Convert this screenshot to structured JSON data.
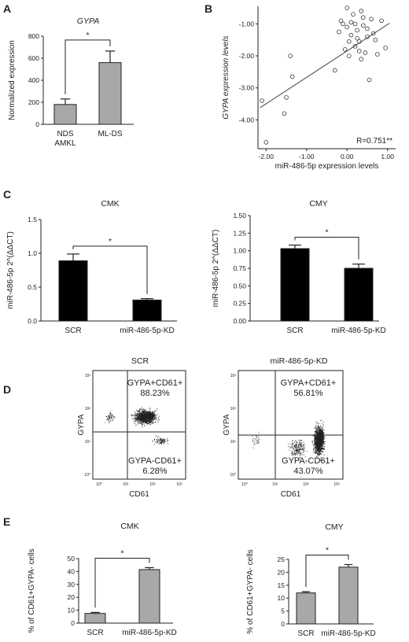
{
  "panels": {
    "A": "A",
    "B": "B",
    "C": "C",
    "D": "D",
    "E": "E"
  },
  "chart_data": [
    {
      "id": "A",
      "type": "bar",
      "title": "GYPA",
      "ylabel": "Normalized expression",
      "categories": [
        [
          "NDS",
          "AMKL"
        ],
        [
          "ML-DS"
        ]
      ],
      "values": [
        180,
        560
      ],
      "errors": [
        50,
        105
      ],
      "ylim": [
        0,
        800
      ],
      "yticks": [
        "0",
        "200",
        "400",
        "600",
        "800"
      ],
      "bar_color": "#a8a8a8",
      "significance": "*"
    },
    {
      "id": "B",
      "type": "scatter",
      "xlabel": "miR-486-5p expression levels",
      "ylabel": "GYPA expression levels",
      "xlim": [
        -2.2,
        1.2
      ],
      "ylim": [
        -4.9,
        -0.45
      ],
      "xticks": [
        -2.0,
        -1.0,
        0.0,
        1.0
      ],
      "xtick_labels": [
        "-2.00",
        "-1.00",
        "0.00",
        "1.00"
      ],
      "yticks": [
        -1.0,
        -2.0,
        -3.0,
        -4.0
      ],
      "ytick_labels": [
        "-1.00",
        "-2.00",
        "-3.00",
        "-4.00"
      ],
      "annotation": "R=0.751**",
      "fit_line": [
        [
          -2.15,
          -3.62
        ],
        [
          1.05,
          -0.98
        ]
      ],
      "points": [
        [
          -2.1,
          -3.4
        ],
        [
          -2.0,
          -4.7
        ],
        [
          -1.4,
          -2.0
        ],
        [
          -1.55,
          -3.8
        ],
        [
          -1.5,
          -3.3
        ],
        [
          -1.35,
          -2.65
        ],
        [
          -0.3,
          -2.45
        ],
        [
          -0.2,
          -1.25
        ],
        [
          -0.15,
          -0.9
        ],
        [
          -0.1,
          -1.0
        ],
        [
          -0.05,
          -1.8
        ],
        [
          0.0,
          -0.5
        ],
        [
          0.0,
          -1.1
        ],
        [
          0.05,
          -2.0
        ],
        [
          0.05,
          -1.55
        ],
        [
          0.1,
          -0.95
        ],
        [
          0.1,
          -1.35
        ],
        [
          0.15,
          -0.7
        ],
        [
          0.2,
          -1.0
        ],
        [
          0.2,
          -1.7
        ],
        [
          0.25,
          -1.2
        ],
        [
          0.3,
          -1.55
        ],
        [
          0.3,
          -1.85
        ],
        [
          0.35,
          -2.1
        ],
        [
          0.35,
          -0.6
        ],
        [
          0.4,
          -1.05
        ],
        [
          0.45,
          -1.9
        ],
        [
          0.5,
          -1.4
        ],
        [
          0.5,
          -1.15
        ],
        [
          0.55,
          -2.75
        ],
        [
          0.6,
          -0.85
        ],
        [
          0.65,
          -1.3
        ],
        [
          0.7,
          -1.5
        ],
        [
          0.75,
          -1.95
        ],
        [
          0.85,
          -0.9
        ],
        [
          0.95,
          -1.75
        ],
        [
          0.4,
          -0.8
        ],
        [
          0.25,
          -1.45
        ]
      ]
    },
    {
      "id": "C-CMK",
      "type": "bar",
      "title": "CMK",
      "ylabel": "miR-486-5p 2^(ΔΔCT)",
      "categories": [
        [
          "SCR"
        ],
        [
          "miR-486-5p-KD"
        ]
      ],
      "values": [
        0.89,
        0.31
      ],
      "errors": [
        0.1,
        0.02
      ],
      "ylim": [
        0,
        1.5
      ],
      "yticks": [
        "0.0",
        "0.5",
        "1.0",
        "1.5"
      ],
      "bar_color": "#000000",
      "significance": "*"
    },
    {
      "id": "C-CMY",
      "type": "bar",
      "title": "CMY",
      "ylabel": "miR-486-5p 2^(ΔΔCT)",
      "categories": [
        [
          "SCR"
        ],
        [
          "miR-486-5p-KD"
        ]
      ],
      "values": [
        1.03,
        0.75
      ],
      "errors": [
        0.05,
        0.06
      ],
      "ylim": [
        0,
        1.5
      ],
      "yticks": [
        "0.00",
        "0.25",
        "0.50",
        "0.75",
        "1.00",
        "1.25",
        "1.50"
      ],
      "bar_color": "#000000",
      "significance": "*"
    },
    {
      "id": "D-SCR",
      "type": "scatter",
      "title": "SCR",
      "xlabel": "CD61",
      "ylabel": "GYPA",
      "upper_quadrant": [
        "GYPA+CD61+",
        "88.23%"
      ],
      "lower_quadrant": [
        "GYPA-CD61+",
        "6.28%"
      ],
      "xtick_labels": [
        "10⁰",
        "10¹",
        "10²",
        "10³"
      ],
      "ytick_labels": [
        "10³",
        "10²",
        "10¹",
        "10⁰"
      ]
    },
    {
      "id": "D-KD",
      "type": "scatter",
      "title": "miR-486-5p-KD",
      "xlabel": "CD61",
      "ylabel": "GYPA",
      "upper_quadrant": [
        "GYPA+CD61+",
        "56.81%"
      ],
      "lower_quadrant": [
        "GYPA-CD61+",
        "43.07%"
      ],
      "xtick_labels": [
        "10⁰",
        "10¹",
        "10²",
        "10³"
      ],
      "ytick_labels": [
        "10³",
        "10²",
        "10¹",
        "10⁰"
      ]
    },
    {
      "id": "E-CMK",
      "type": "bar",
      "title": "CMK",
      "ylabel": "% of CD61+GYPA- cells",
      "categories": [
        [
          "SCR"
        ],
        [
          "miR-486-5p-KD"
        ]
      ],
      "values": [
        7.5,
        41.5
      ],
      "errors": [
        0.8,
        1.5
      ],
      "ylim": [
        0,
        50
      ],
      "yticks": [
        "0",
        "10",
        "20",
        "30",
        "40",
        "50"
      ],
      "bar_color": "#a8a8a8",
      "significance": "*"
    },
    {
      "id": "E-CMY",
      "type": "bar",
      "title": "CMY",
      "ylabel": "% of CD61+GYPA- cells",
      "categories": [
        [
          "SCR"
        ],
        [
          "miR-486-5p-KD"
        ]
      ],
      "values": [
        12.0,
        22.0
      ],
      "errors": [
        0.5,
        1.0
      ],
      "ylim": [
        0,
        25
      ],
      "yticks": [
        "0",
        "5",
        "10",
        "15",
        "20",
        "25"
      ],
      "bar_color": "#a8a8a8",
      "significance": "*"
    }
  ]
}
